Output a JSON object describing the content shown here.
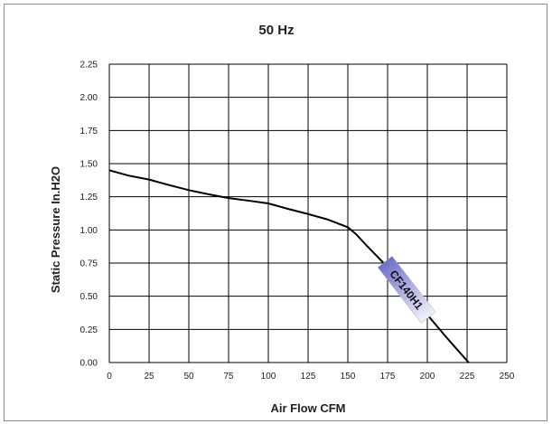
{
  "chart_data": {
    "type": "line",
    "title": "50 Hz",
    "xlabel": "Air Flow CFM",
    "ylabel": "Static Pressure In.H2O",
    "xlim": [
      0,
      250
    ],
    "ylim": [
      0,
      2.25
    ],
    "x_ticks": [
      "0",
      "25",
      "50",
      "75",
      "100",
      "125",
      "150",
      "175",
      "200",
      "225",
      "250"
    ],
    "y_ticks": [
      "0.00",
      "0.25",
      "0.50",
      "0.75",
      "1.00",
      "1.25",
      "1.50",
      "1.75",
      "2.00",
      "2.25"
    ],
    "grid": true,
    "series": [
      {
        "name": "CF140H1",
        "x": [
          0,
          12,
          25,
          37,
          50,
          62,
          75,
          88,
          100,
          112,
          125,
          137,
          150,
          155,
          162,
          175,
          187,
          200,
          212,
          226
        ],
        "y": [
          1.45,
          1.41,
          1.38,
          1.34,
          1.3,
          1.27,
          1.24,
          1.22,
          1.2,
          1.16,
          1.12,
          1.08,
          1.02,
          0.97,
          0.88,
          0.72,
          0.54,
          0.36,
          0.19,
          0.0
        ]
      }
    ],
    "annotations": [
      {
        "text": "CF140H1",
        "x": 187,
        "y": 0.55
      }
    ],
    "colors": {
      "line": "#000000",
      "grid": "#000000",
      "tag_start": "#6e6ec8",
      "tag_end": "#f2f2fa"
    }
  }
}
